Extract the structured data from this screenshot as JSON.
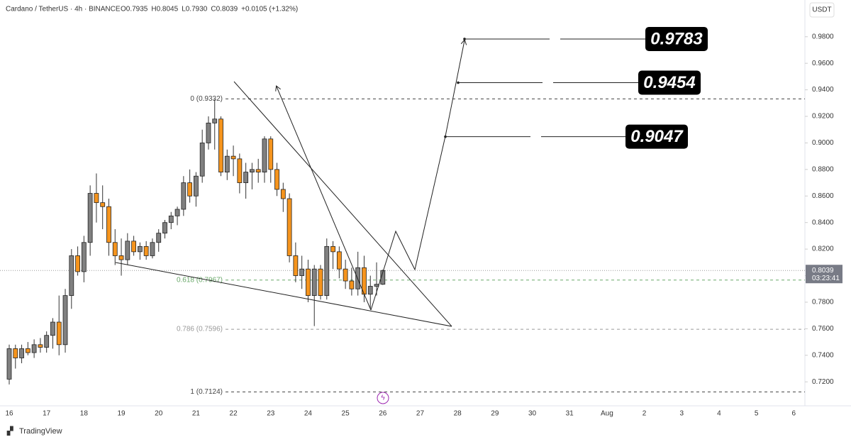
{
  "header": {
    "symbol": "Cardano / TetherUS · 4h · BINANCE",
    "ohlc": [
      "O0.7935",
      "H0.8045",
      "L0.7930",
      "C0.8039",
      "+0.0105 (+1.32%)"
    ],
    "currency": "USDT",
    "brand": "TradingView"
  },
  "chart_data": {
    "type": "candlestick",
    "up_color": "#808080",
    "down_color": "#f5941d",
    "open": [
      0.722,
      0.745,
      0.738,
      0.745,
      0.742,
      0.748,
      0.746,
      0.755,
      0.765,
      0.748,
      0.785,
      0.815,
      0.803,
      0.825,
      0.862,
      0.855,
      0.852,
      0.825,
      0.815,
      0.812,
      0.826,
      0.818,
      0.822,
      0.815,
      0.825,
      0.832,
      0.84,
      0.845,
      0.85,
      0.87,
      0.86,
      0.875,
      0.9,
      0.915,
      0.918,
      0.878,
      0.89,
      0.888,
      0.87,
      0.878,
      0.88,
      0.878,
      0.903,
      0.88,
      0.865,
      0.858,
      0.815,
      0.8,
      0.805,
      0.785,
      0.805,
      0.785,
      0.822,
      0.818,
      0.805,
      0.796,
      0.79,
      0.806,
      0.786,
      0.792,
      0.7935
    ],
    "high": [
      0.748,
      0.748,
      0.748,
      0.75,
      0.752,
      0.753,
      0.758,
      0.768,
      0.785,
      0.79,
      0.82,
      0.822,
      0.83,
      0.868,
      0.877,
      0.868,
      0.858,
      0.835,
      0.828,
      0.832,
      0.83,
      0.825,
      0.826,
      0.828,
      0.835,
      0.842,
      0.848,
      0.852,
      0.875,
      0.88,
      0.878,
      0.91,
      0.92,
      0.933,
      0.92,
      0.895,
      0.898,
      0.892,
      0.885,
      0.885,
      0.888,
      0.905,
      0.905,
      0.885,
      0.87,
      0.862,
      0.825,
      0.815,
      0.812,
      0.808,
      0.808,
      0.828,
      0.826,
      0.822,
      0.812,
      0.806,
      0.818,
      0.815,
      0.8,
      0.81,
      0.8045
    ],
    "low": [
      0.718,
      0.73,
      0.734,
      0.74,
      0.738,
      0.742,
      0.742,
      0.745,
      0.74,
      0.742,
      0.775,
      0.8,
      0.795,
      0.815,
      0.84,
      0.835,
      0.815,
      0.808,
      0.8,
      0.808,
      0.815,
      0.812,
      0.812,
      0.813,
      0.818,
      0.828,
      0.835,
      0.838,
      0.845,
      0.855,
      0.852,
      0.87,
      0.895,
      0.895,
      0.875,
      0.872,
      0.875,
      0.862,
      0.858,
      0.865,
      0.87,
      0.87,
      0.87,
      0.86,
      0.848,
      0.81,
      0.795,
      0.79,
      0.78,
      0.762,
      0.782,
      0.782,
      0.805,
      0.798,
      0.79,
      0.785,
      0.785,
      0.78,
      0.775,
      0.785,
      0.793
    ],
    "close": [
      0.745,
      0.738,
      0.745,
      0.742,
      0.748,
      0.746,
      0.755,
      0.765,
      0.748,
      0.785,
      0.815,
      0.803,
      0.825,
      0.862,
      0.855,
      0.852,
      0.825,
      0.815,
      0.812,
      0.826,
      0.818,
      0.822,
      0.815,
      0.825,
      0.832,
      0.84,
      0.845,
      0.85,
      0.87,
      0.86,
      0.875,
      0.9,
      0.915,
      0.918,
      0.878,
      0.89,
      0.888,
      0.87,
      0.878,
      0.88,
      0.878,
      0.903,
      0.88,
      0.865,
      0.858,
      0.815,
      0.8,
      0.805,
      0.785,
      0.805,
      0.785,
      0.822,
      0.818,
      0.805,
      0.796,
      0.79,
      0.806,
      0.786,
      0.792,
      0.7935,
      0.8039
    ],
    "x_labels": [
      "16",
      "17",
      "18",
      "19",
      "20",
      "21",
      "22",
      "23",
      "24",
      "25",
      "26",
      "27",
      "28",
      "29",
      "30",
      "31",
      "Aug",
      "2",
      "3",
      "4",
      "5",
      "6"
    ],
    "ylim": [
      0.703,
      1.005
    ],
    "yticks": [
      {
        "value": 0.72,
        "label": "0.7200"
      },
      {
        "value": 0.74,
        "label": "0.7400"
      },
      {
        "value": 0.76,
        "label": "0.7600"
      },
      {
        "value": 0.78,
        "label": "0.7800"
      },
      {
        "value": 0.8,
        "label": "0.8000"
      },
      {
        "value": 0.82,
        "label": "0.8200"
      },
      {
        "value": 0.84,
        "label": "0.8400"
      },
      {
        "value": 0.86,
        "label": "0.8600"
      },
      {
        "value": 0.88,
        "label": "0.8800"
      },
      {
        "value": 0.9,
        "label": "0.9000"
      },
      {
        "value": 0.92,
        "label": "0.9200"
      },
      {
        "value": 0.94,
        "label": "0.9400"
      },
      {
        "value": 0.96,
        "label": "0.9600"
      },
      {
        "value": 0.98,
        "label": "0.9800"
      }
    ],
    "fib_levels": [
      {
        "value": 0.9332,
        "label": "0 (0.9332)",
        "color": "#444444"
      },
      {
        "value": 0.7967,
        "label": "0.618 (0.7967)",
        "color": "#6aa86a"
      },
      {
        "value": 0.7596,
        "label": "0.786 (0.7596)",
        "color": "#999999"
      },
      {
        "value": 0.7124,
        "label": "1 (0.7124)",
        "color": "#444444"
      }
    ],
    "last_price": {
      "value": 0.8039,
      "label": "0.8039",
      "countdown": "03:23:41"
    },
    "targets": [
      0.9783,
      0.9454,
      0.9047
    ]
  }
}
